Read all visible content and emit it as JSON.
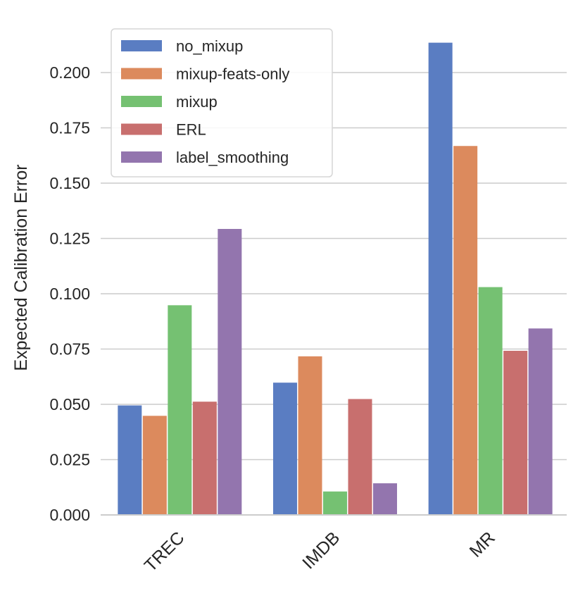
{
  "chart_data": {
    "type": "bar",
    "title": "",
    "xlabel": "",
    "ylabel": "Expected Calibration Error",
    "categories": [
      "TREC",
      "IMDB",
      "MR"
    ],
    "series": [
      {
        "name": "no_mixup",
        "values": [
          0.0495,
          0.0598,
          0.2135
        ],
        "color": "#5a7dc2"
      },
      {
        "name": "mixup-feats-only",
        "values": [
          0.0448,
          0.0717,
          0.1668
        ],
        "color": "#dc8a5d"
      },
      {
        "name": "mixup",
        "values": [
          0.0948,
          0.0106,
          0.103
        ],
        "color": "#75c172"
      },
      {
        "name": "ERL",
        "values": [
          0.0512,
          0.0524,
          0.0742
        ],
        "color": "#c86f6e"
      },
      {
        "name": "label_smoothing",
        "values": [
          0.1293,
          0.0143,
          0.0843
        ],
        "color": "#9375ae"
      }
    ],
    "ylim": [
      0,
      0.22
    ],
    "yticks": [
      "0.000",
      "0.025",
      "0.050",
      "0.075",
      "0.100",
      "0.125",
      "0.150",
      "0.175",
      "0.200"
    ],
    "grid": "horizontal",
    "legend_position": "top-left",
    "x_tick_rotation": 45
  }
}
